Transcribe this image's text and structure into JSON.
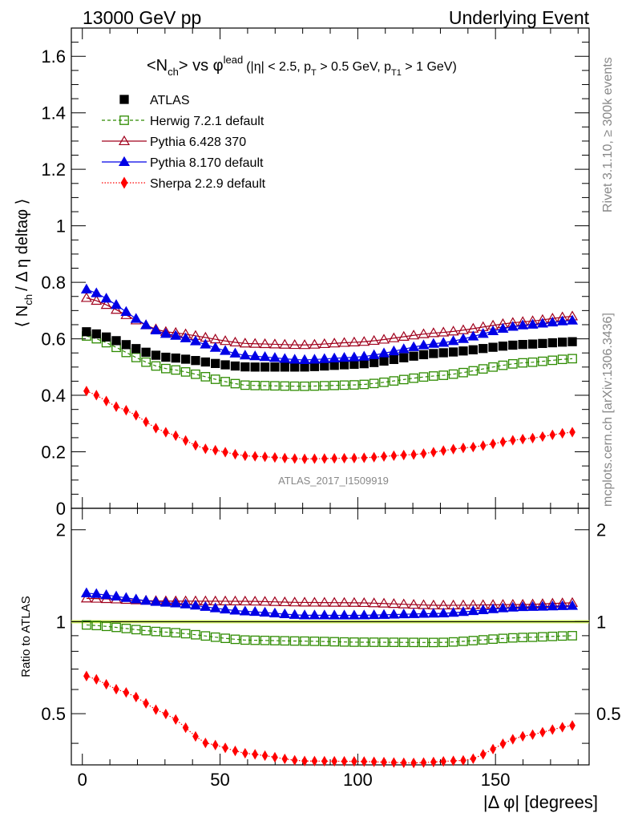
{
  "header": {
    "left": "13000 GeV pp",
    "right": "Underlying Event"
  },
  "side_text": {
    "rivet": "Rivet 3.1.10, ≥ 300k events",
    "mcplots": "mcplots.cern.ch [arXiv:1306.3436]"
  },
  "watermark": "ATLAS_2017_I1509919",
  "chart_data": [
    {
      "type": "scatter",
      "panel": "main",
      "title": "<N_ch> vs φ^lead (|η| < 2.5, p_T > 0.5 GeV, p_T1 > 1 GeV)",
      "title_parts": {
        "main": "<N",
        "main_sub": "ch",
        "main_rest": "> vs φ",
        "main_sup": "lead",
        "cut1": "(|η| < 2.5, p",
        "cut1_sub": "T",
        "cut2": " > 0.5 GeV, p",
        "cut2_sub": "T1",
        "cut3": " > 1 GeV)"
      },
      "ylabel": "⟨ N_ch / Δη deltaφ ⟩",
      "ylabel_parts": {
        "a": "⟨ N",
        "sub": "ch",
        "b": "/ Δ η deltaφ ⟩"
      },
      "xlabel": "",
      "xlim": [
        -4,
        184
      ],
      "ylim": [
        0,
        1.7
      ],
      "yticks": [
        {
          "v": 0.2,
          "label": "0.2"
        },
        {
          "v": 0.4,
          "label": "0.4"
        },
        {
          "v": 0.6,
          "label": "0.6"
        },
        {
          "v": 0.8,
          "label": "0.8"
        },
        {
          "v": 1.0,
          "label": "1"
        },
        {
          "v": 1.2,
          "label": "1.2"
        },
        {
          "v": 1.4,
          "label": "1.4"
        },
        {
          "v": 1.6,
          "label": "1.6"
        },
        {
          "v": 0.0,
          "label": "0"
        }
      ],
      "series": [
        {
          "name": "ATLAS",
          "color": "#000000",
          "marker": "filled-square",
          "line": "none",
          "x0": 1.5,
          "dx": 3.6,
          "n": 50,
          "keys": [
            [
              1.5,
              0.625
            ],
            [
              30,
              0.535
            ],
            [
              60,
              0.5
            ],
            [
              80,
              0.5
            ],
            [
              100,
              0.51
            ],
            [
              130,
              0.55
            ],
            [
              160,
              0.58
            ],
            [
              178.5,
              0.59
            ]
          ]
        },
        {
          "name": "Herwig 7.2.1 default",
          "color": "#2e8b00",
          "marker": "open-square",
          "line": "dashed",
          "x0": 1.5,
          "dx": 3.6,
          "n": 50,
          "keys": [
            [
              1.5,
              0.61
            ],
            [
              30,
              0.495
            ],
            [
              60,
              0.435
            ],
            [
              80,
              0.432
            ],
            [
              100,
              0.437
            ],
            [
              130,
              0.47
            ],
            [
              160,
              0.515
            ],
            [
              178.5,
              0.53
            ]
          ]
        },
        {
          "name": "Pythia 6.428 370",
          "color": "#a0001c",
          "marker": "open-triangle",
          "line": "solid",
          "x0": 1.5,
          "dx": 3.6,
          "n": 50,
          "keys": [
            [
              1.5,
              0.745
            ],
            [
              30,
              0.625
            ],
            [
              60,
              0.583
            ],
            [
              80,
              0.578
            ],
            [
              100,
              0.588
            ],
            [
              130,
              0.622
            ],
            [
              160,
              0.66
            ],
            [
              178.5,
              0.68
            ]
          ]
        },
        {
          "name": "Pythia 8.170 default",
          "color": "#0000e6",
          "marker": "filled-triangle",
          "line": "solid",
          "x0": 1.5,
          "dx": 3.6,
          "n": 50,
          "keys": [
            [
              1.5,
              0.775
            ],
            [
              30,
              0.618
            ],
            [
              60,
              0.54
            ],
            [
              80,
              0.525
            ],
            [
              100,
              0.535
            ],
            [
              130,
              0.585
            ],
            [
              160,
              0.648
            ],
            [
              178.5,
              0.665
            ]
          ]
        },
        {
          "name": "Sherpa 2.2.9 default",
          "color": "#ff0000",
          "marker": "filled-diamond",
          "line": "dotted",
          "x0": 1.5,
          "dx": 3.6,
          "n": 50,
          "keys": [
            [
              1.5,
              0.415
            ],
            [
              15,
              0.35
            ],
            [
              30,
              0.27
            ],
            [
              45,
              0.21
            ],
            [
              60,
              0.185
            ],
            [
              80,
              0.175
            ],
            [
              100,
              0.178
            ],
            [
              120,
              0.19
            ],
            [
              140,
              0.215
            ],
            [
              160,
              0.245
            ],
            [
              178.5,
              0.27
            ]
          ]
        }
      ]
    },
    {
      "type": "scatter",
      "panel": "ratio",
      "ylabel": "Ratio to ATLAS",
      "xlabel": "|Δ φ| [degrees]",
      "xlim": [
        -4,
        184
      ],
      "ylim": [
        0.34,
        2.35
      ],
      "yscale": "log",
      "xticks": [
        {
          "v": 0,
          "label": "0"
        },
        {
          "v": 50,
          "label": "50"
        },
        {
          "v": 100,
          "label": "100"
        },
        {
          "v": 150,
          "label": "150"
        }
      ],
      "yticks": [
        {
          "v": 0.5,
          "label": "0.5"
        },
        {
          "v": 1,
          "label": "1"
        },
        {
          "v": 2,
          "label": "2"
        }
      ],
      "reference_band": {
        "value": 1.0,
        "color": "#c8f03c"
      },
      "series": [
        {
          "name": "Herwig 7.2.1 default",
          "color": "#2e8b00",
          "marker": "open-square",
          "line": "dashed",
          "keys": [
            [
              1.5,
              0.976
            ],
            [
              30,
              0.925
            ],
            [
              60,
              0.87
            ],
            [
              80,
              0.864
            ],
            [
              100,
              0.857
            ],
            [
              130,
              0.855
            ],
            [
              160,
              0.888
            ],
            [
              178.5,
              0.9
            ]
          ]
        },
        {
          "name": "Pythia 6.428 370",
          "color": "#a0001c",
          "marker": "open-triangle",
          "line": "solid",
          "keys": [
            [
              1.5,
              1.192
            ],
            [
              30,
              1.168
            ],
            [
              60,
              1.166
            ],
            [
              80,
              1.156
            ],
            [
              100,
              1.153
            ],
            [
              130,
              1.131
            ],
            [
              160,
              1.138
            ],
            [
              178.5,
              1.153
            ]
          ]
        },
        {
          "name": "Pythia 8.170 default",
          "color": "#0000e6",
          "marker": "filled-triangle",
          "line": "solid",
          "keys": [
            [
              1.5,
              1.24
            ],
            [
              30,
              1.155
            ],
            [
              60,
              1.08
            ],
            [
              80,
              1.05
            ],
            [
              100,
              1.049
            ],
            [
              130,
              1.064
            ],
            [
              160,
              1.117
            ],
            [
              178.5,
              1.127
            ]
          ]
        },
        {
          "name": "Sherpa 2.2.9 default",
          "color": "#ff0000",
          "marker": "filled-diamond",
          "line": "dotted",
          "keys": [
            [
              1.5,
              0.664
            ],
            [
              15,
              0.59
            ],
            [
              30,
              0.5
            ],
            [
              45,
              0.4
            ],
            [
              60,
              0.37
            ],
            [
              80,
              0.35
            ],
            [
              100,
              0.349
            ],
            [
              120,
              0.345
            ],
            [
              140,
              0.352
            ],
            [
              160,
              0.422
            ],
            [
              178.5,
              0.458
            ]
          ]
        }
      ]
    }
  ]
}
